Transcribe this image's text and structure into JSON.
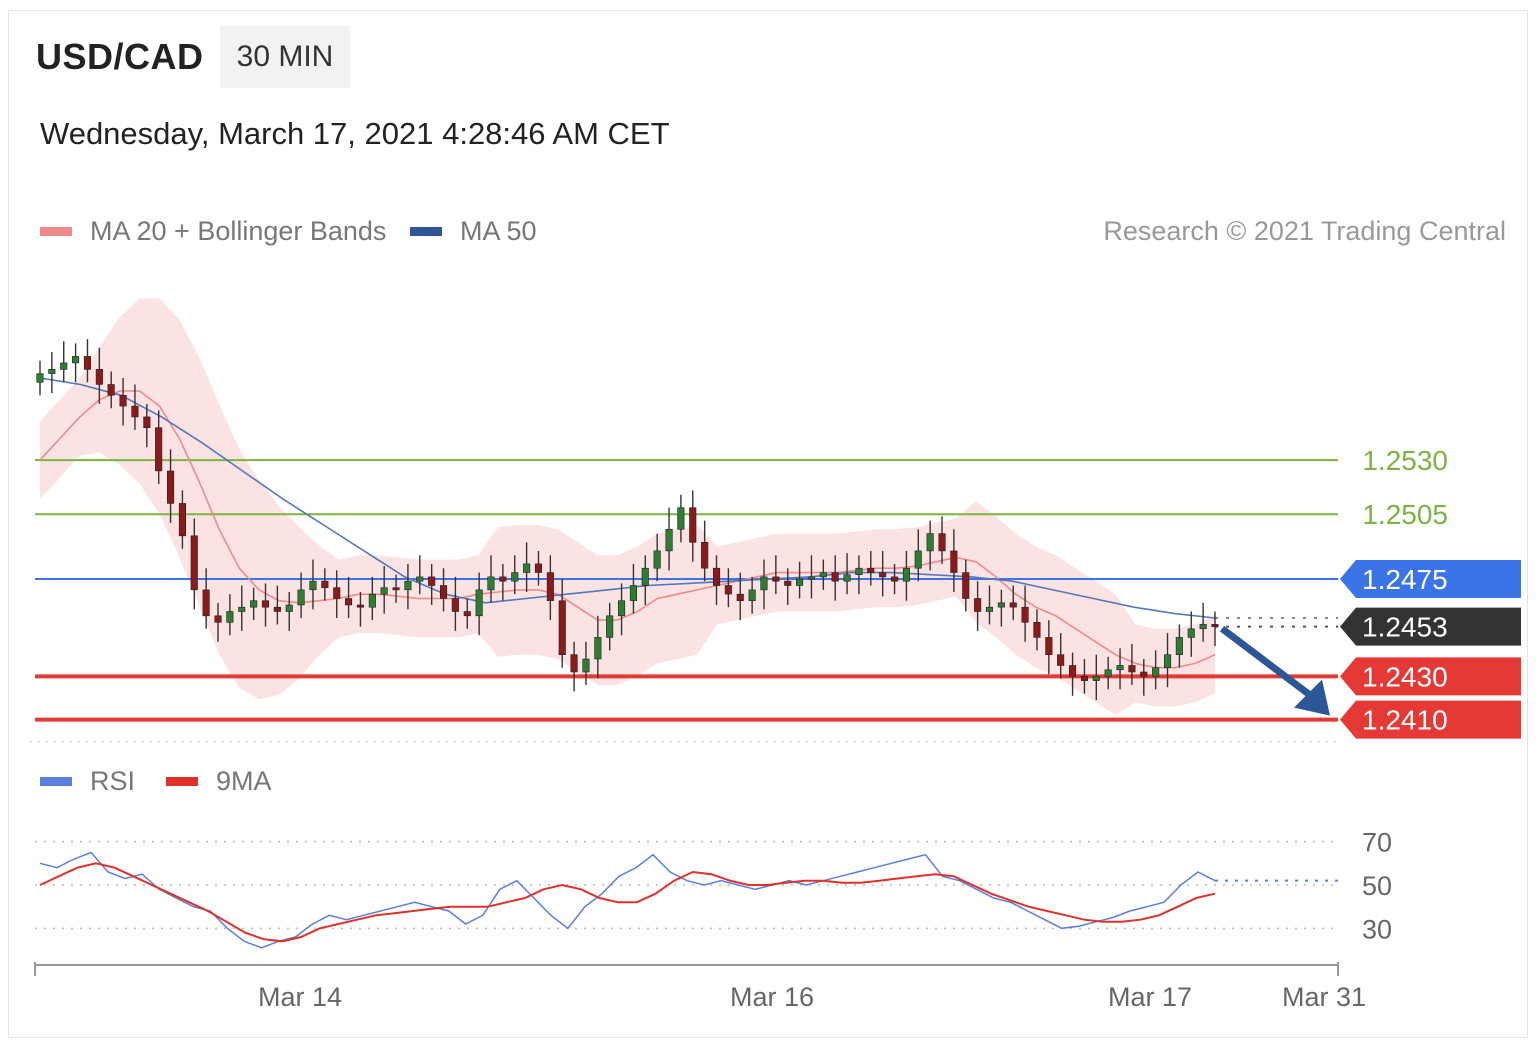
{
  "header": {
    "pair": "USD/CAD",
    "timeframe": "30 MIN",
    "datetime": "Wednesday, March 17, 2021 4:28:46 AM CET",
    "copyright": "Research © 2021 Trading Central"
  },
  "legend_main": [
    {
      "label": "MA 20 + Bollinger Bands",
      "color": "#f08a8a"
    },
    {
      "label": "MA 50",
      "color": "#2f5597"
    }
  ],
  "legend_rsi": [
    {
      "label": "RSI",
      "color": "#5b7fe0"
    },
    {
      "label": "9MA",
      "color": "#e0302a"
    }
  ],
  "colors": {
    "resistance": "#7cb342",
    "pivot": "#3b74e6",
    "current": "#333333",
    "support": "#e53935",
    "arrow": "#2b5797",
    "bollinger_fill": "#fbe3e3",
    "candle_up": "#2e7d32",
    "candle_down": "#8b1a1a"
  },
  "chart_data": [
    {
      "type": "candlestick",
      "title": "USD/CAD 30 MIN",
      "ylim": [
        1.2395,
        1.2605
      ],
      "levels": [
        {
          "value": "1.2530",
          "kind": "resistance"
        },
        {
          "value": "1.2505",
          "kind": "resistance"
        },
        {
          "value": "1.2475",
          "kind": "pivot"
        },
        {
          "value": "1.2453",
          "kind": "current"
        },
        {
          "value": "1.2430",
          "kind": "support"
        },
        {
          "value": "1.2410",
          "kind": "support"
        }
      ],
      "xticks": [
        "Mar 14",
        "Mar 16",
        "Mar 17",
        "Mar 31"
      ],
      "close_series": [
        1.257,
        1.2572,
        1.2575,
        1.2578,
        1.2572,
        1.2565,
        1.256,
        1.2555,
        1.255,
        1.2545,
        1.2525,
        1.251,
        1.2495,
        1.247,
        1.2458,
        1.2455,
        1.246,
        1.2462,
        1.2465,
        1.2462,
        1.246,
        1.2463,
        1.247,
        1.2474,
        1.2471,
        1.2466,
        1.2463,
        1.2462,
        1.2468,
        1.2471,
        1.247,
        1.2474,
        1.2476,
        1.2472,
        1.2466,
        1.246,
        1.2458,
        1.247,
        1.2476,
        1.2474,
        1.2478,
        1.2482,
        1.2478,
        1.2465,
        1.244,
        1.2432,
        1.2438,
        1.2448,
        1.2458,
        1.2465,
        1.2472,
        1.248,
        1.2488,
        1.2498,
        1.2508,
        1.2492,
        1.248,
        1.2472,
        1.2468,
        1.2465,
        1.247,
        1.2476,
        1.2474,
        1.2472,
        1.2475,
        1.2476,
        1.2478,
        1.2474,
        1.2477,
        1.248,
        1.2478,
        1.2476,
        1.2474,
        1.248,
        1.2488,
        1.2496,
        1.2488,
        1.2478,
        1.2466,
        1.246,
        1.2462,
        1.2464,
        1.2462,
        1.2455,
        1.2448,
        1.244,
        1.2435,
        1.243,
        1.2428,
        1.243,
        1.2433,
        1.2435,
        1.2432,
        1.243,
        1.2434,
        1.244,
        1.2448,
        1.2452,
        1.2454,
        1.2453
      ],
      "ma20_series": [
        1.253,
        1.254,
        1.255,
        1.2558,
        1.2562,
        1.2562,
        1.2555,
        1.254,
        1.252,
        1.2498,
        1.248,
        1.247,
        1.2465,
        1.2464,
        1.2465,
        1.2466,
        1.2468,
        1.2468,
        1.2467,
        1.2466,
        1.2466,
        1.2466,
        1.2468,
        1.2469,
        1.247,
        1.247,
        1.2468,
        1.2462,
        1.2456,
        1.2456,
        1.246,
        1.2466,
        1.2468,
        1.247,
        1.2472,
        1.2474,
        1.2476,
        1.2478,
        1.2478,
        1.2478,
        1.2478,
        1.2479,
        1.248,
        1.248,
        1.2481,
        1.2483,
        1.2485,
        1.2483,
        1.2476,
        1.2468,
        1.2462,
        1.2458,
        1.2452,
        1.2446,
        1.244,
        1.2436,
        1.2434,
        1.2434,
        1.2436,
        1.244
      ],
      "ma50_series": [
        1.2568,
        1.2565,
        1.256,
        1.255,
        1.2538,
        1.2525,
        1.2512,
        1.25,
        1.2488,
        1.2476,
        1.2468,
        1.2464,
        1.2466,
        1.2468,
        1.247,
        1.2472,
        1.2473,
        1.2474,
        1.2475,
        1.2476,
        1.2478,
        1.2478,
        1.2477,
        1.2476,
        1.2474,
        1.247,
        1.2466,
        1.2462,
        1.2459,
        1.2457
      ]
    },
    {
      "type": "line",
      "title": "",
      "ylim": [
        20,
        80
      ],
      "yticks": [
        "70",
        "50",
        "30"
      ],
      "series": [
        {
          "name": "RSI",
          "values": [
            60,
            58,
            62,
            65,
            56,
            53,
            55,
            48,
            44,
            40,
            38,
            30,
            24,
            21,
            24,
            26,
            32,
            36,
            34,
            36,
            38,
            40,
            42,
            40,
            38,
            32,
            36,
            48,
            52,
            44,
            36,
            30,
            40,
            46,
            54,
            58,
            64,
            56,
            52,
            50,
            52,
            50,
            48,
            50,
            52,
            50,
            52,
            54,
            56,
            58,
            60,
            62,
            64,
            54,
            52,
            48,
            44,
            42,
            38,
            34,
            30,
            31,
            33,
            35,
            38,
            40,
            42,
            50,
            56,
            52
          ]
        },
        {
          "name": "9MA",
          "values": [
            50,
            54,
            58,
            60,
            58,
            54,
            50,
            46,
            42,
            38,
            33,
            28,
            25,
            24,
            26,
            30,
            32,
            34,
            36,
            37,
            38,
            39,
            40,
            40,
            40,
            42,
            44,
            48,
            50,
            48,
            44,
            42,
            42,
            46,
            52,
            56,
            55,
            52,
            50,
            50,
            51,
            52,
            52,
            51,
            51,
            52,
            53,
            54,
            55,
            54,
            50,
            46,
            43,
            40,
            38,
            36,
            34,
            33,
            33,
            34,
            36,
            40,
            44,
            46
          ]
        }
      ]
    }
  ]
}
